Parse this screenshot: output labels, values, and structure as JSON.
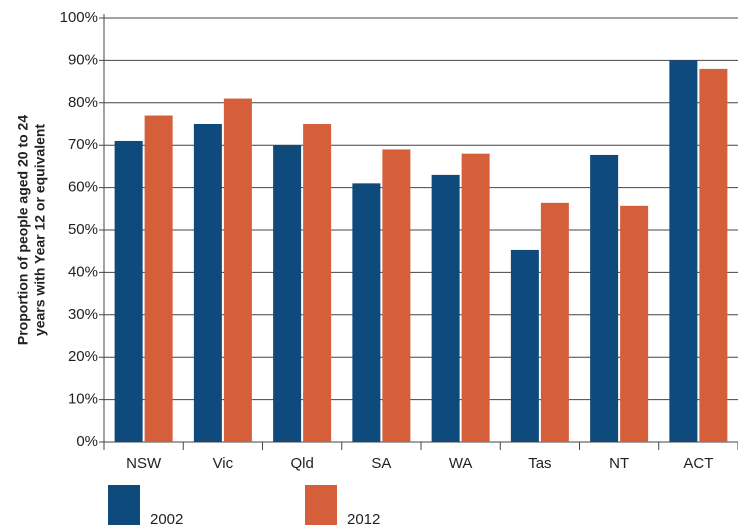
{
  "chart_data": {
    "type": "bar",
    "ylabel": [
      "Proportion of people aged 20 to 24",
      "years with Year 12 or equivalent"
    ],
    "categories": [
      "NSW",
      "Vic",
      "Qld",
      "SA",
      "WA",
      "Tas",
      "NT",
      "ACT"
    ],
    "series": [
      {
        "name": "2002",
        "color": "#0f4a7c",
        "values": [
          71,
          75,
          70,
          61,
          63,
          45.3,
          67.7,
          90
        ]
      },
      {
        "name": "2012",
        "color": "#d45f3a",
        "values": [
          77,
          81,
          75,
          69,
          68,
          56.4,
          55.7,
          88
        ]
      }
    ],
    "ylim": [
      0,
      100
    ],
    "yticks": [
      {
        "value": 0,
        "label": "0%"
      },
      {
        "value": 10,
        "label": "10%"
      },
      {
        "value": 20,
        "label": "20%"
      },
      {
        "value": 30,
        "label": "30%"
      },
      {
        "value": 40,
        "label": "40%"
      },
      {
        "value": 50,
        "label": "50%"
      },
      {
        "value": 60,
        "label": "60%"
      },
      {
        "value": 70,
        "label": "70%"
      },
      {
        "value": 80,
        "label": "80%"
      },
      {
        "value": 90,
        "label": "90%"
      },
      {
        "value": 100,
        "label": "100%"
      }
    ],
    "grid": true,
    "legend": "bottom"
  }
}
